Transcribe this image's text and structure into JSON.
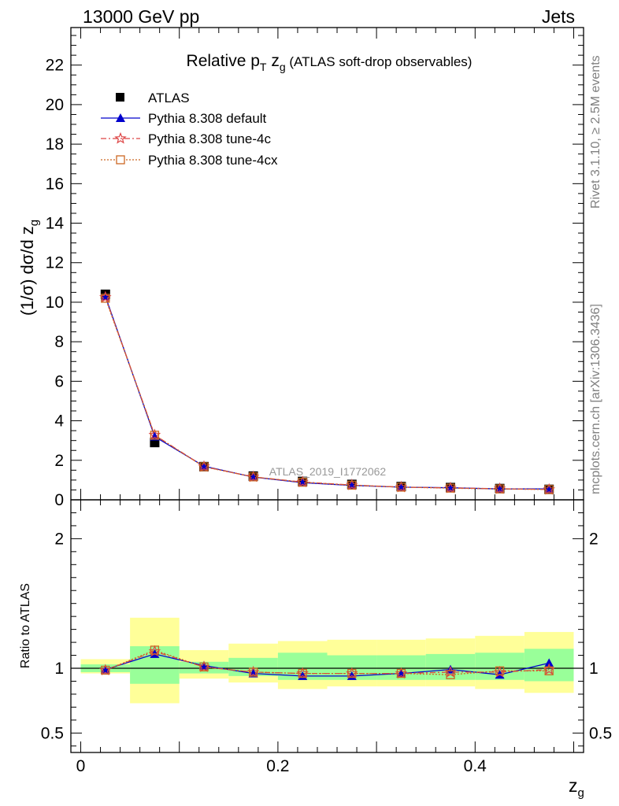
{
  "header": {
    "left": "13000 GeV pp",
    "right": "Jets"
  },
  "side": {
    "rivet": "Rivet 3.1.10, ≥ 2.5M events",
    "mcplots": "mcplots.cern.ch [arXiv:1306.3436]"
  },
  "chart_data": [
    {
      "type": "scatter",
      "title": {
        "pre": "Relative p",
        "sub1": "T",
        "mid": " z",
        "sub2": "g",
        "post": " (ATLAS soft-drop observables)"
      },
      "ylabel": {
        "main": "(1/σ) dσ/d z",
        "sub": "g"
      },
      "watermark": "ATLAS_2019_I1772062",
      "xlim": [
        -0.01,
        0.51
      ],
      "ylim": [
        0,
        23.9
      ],
      "y_ticks": [
        0,
        2,
        4,
        6,
        8,
        10,
        12,
        14,
        16,
        18,
        20,
        22
      ],
      "y_tick_labels": [
        "0",
        "2",
        "4",
        "6",
        "8",
        "10",
        "12",
        "14",
        "16",
        "18",
        "20",
        "22"
      ],
      "x": [
        0.025,
        0.075,
        0.125,
        0.175,
        0.225,
        0.275,
        0.325,
        0.375,
        0.425,
        0.475
      ],
      "series": [
        {
          "name": "ATLAS",
          "color": "#000000",
          "marker": "square",
          "values": [
            10.4,
            2.9,
            1.68,
            1.2,
            0.93,
            0.78,
            0.67,
            0.62,
            0.57,
            0.53
          ]
        },
        {
          "name": "Pythia 8.308 default",
          "color": "#0000cc",
          "marker": "triangle",
          "line": "solid",
          "values": [
            10.3,
            3.2,
            1.7,
            1.15,
            0.87,
            0.73,
            0.64,
            0.61,
            0.55,
            0.55
          ]
        },
        {
          "name": "Pythia 8.308 tune-4c",
          "color": "#dd4444",
          "marker": "star",
          "line": "dashdot",
          "values": [
            10.25,
            3.28,
            1.68,
            1.16,
            0.9,
            0.75,
            0.64,
            0.6,
            0.56,
            0.52
          ]
        },
        {
          "name": "Pythia 8.308 tune-4cx",
          "color": "#cc6622",
          "marker": "open-square",
          "line": "dotted",
          "values": [
            10.2,
            3.27,
            1.67,
            1.16,
            0.89,
            0.74,
            0.64,
            0.59,
            0.55,
            0.52
          ]
        }
      ]
    },
    {
      "type": "scatter",
      "ylabel": "Ratio to ATLAS",
      "xlabel": {
        "main": "z",
        "sub": "g"
      },
      "xlim": [
        -0.01,
        0.51
      ],
      "ylim": [
        0.35,
        2.3
      ],
      "x_ticks": [
        0,
        0.2,
        0.4
      ],
      "x_tick_labels": [
        "0",
        "0.2",
        "0.4"
      ],
      "y_ticks": [
        0.5,
        1,
        2
      ],
      "y_tick_labels": [
        "0.5",
        "1",
        "2"
      ],
      "bins": [
        [
          0,
          0.05
        ],
        [
          0.05,
          0.1
        ],
        [
          0.1,
          0.15
        ],
        [
          0.15,
          0.2
        ],
        [
          0.2,
          0.25
        ],
        [
          0.25,
          0.3
        ],
        [
          0.3,
          0.35
        ],
        [
          0.35,
          0.4
        ],
        [
          0.4,
          0.45
        ],
        [
          0.45,
          0.5
        ]
      ],
      "band_inner": [
        [
          0.97,
          1.03
        ],
        [
          0.88,
          1.17
        ],
        [
          0.96,
          1.05
        ],
        [
          0.94,
          1.08
        ],
        [
          0.91,
          1.12
        ],
        [
          0.91,
          1.1
        ],
        [
          0.91,
          1.1
        ],
        [
          0.91,
          1.11
        ],
        [
          0.91,
          1.12
        ],
        [
          0.9,
          1.15
        ]
      ],
      "band_outer": [
        [
          0.96,
          1.07
        ],
        [
          0.73,
          1.39
        ],
        [
          0.92,
          1.14
        ],
        [
          0.89,
          1.19
        ],
        [
          0.84,
          1.21
        ],
        [
          0.86,
          1.22
        ],
        [
          0.86,
          1.22
        ],
        [
          0.86,
          1.23
        ],
        [
          0.84,
          1.25
        ],
        [
          0.81,
          1.28
        ]
      ],
      "series": [
        {
          "name": "Pythia 8.308 default",
          "color": "#0000cc",
          "marker": "triangle",
          "line": "solid",
          "values": [
            0.99,
            1.11,
            1.02,
            0.96,
            0.94,
            0.94,
            0.96,
            0.99,
            0.95,
            1.04
          ]
        },
        {
          "name": "Pythia 8.308 tune-4c",
          "color": "#dd4444",
          "marker": "star",
          "line": "dashdot",
          "values": [
            0.985,
            1.13,
            1.01,
            0.97,
            0.96,
            0.96,
            0.96,
            0.97,
            0.97,
            0.99
          ]
        },
        {
          "name": "Pythia 8.308 tune-4cx",
          "color": "#cc6622",
          "marker": "open-square",
          "line": "dotted",
          "values": [
            0.985,
            1.14,
            1.01,
            0.97,
            0.96,
            0.96,
            0.96,
            0.95,
            0.98,
            0.98
          ]
        }
      ]
    }
  ]
}
